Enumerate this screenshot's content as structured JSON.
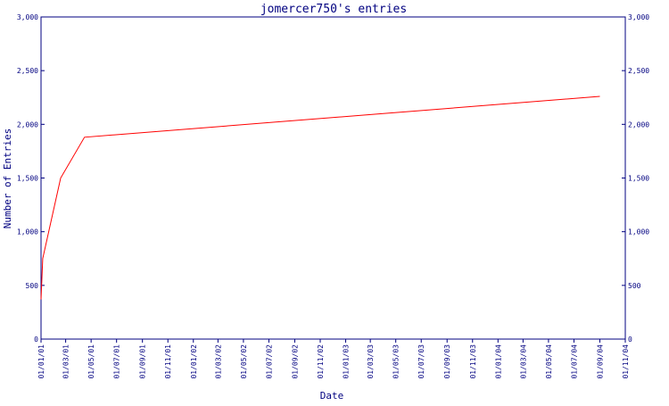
{
  "chart_data": {
    "type": "line",
    "title": "jomercer750's entries",
    "xlabel": "Date",
    "ylabel": "Number of Entries",
    "ylim": [
      0,
      3000
    ],
    "y_ticks": [
      {
        "value": 0,
        "label": "0"
      },
      {
        "value": 500,
        "label": "500"
      },
      {
        "value": 1000,
        "label": "1,000"
      },
      {
        "value": 1500,
        "label": "1,500"
      },
      {
        "value": 2000,
        "label": "2,000"
      },
      {
        "value": 2500,
        "label": "2,500"
      },
      {
        "value": 3000,
        "label": "3,000"
      }
    ],
    "x_ticks": [
      {
        "date": "2001-01-01",
        "label": "01/01/01"
      },
      {
        "date": "2001-03-01",
        "label": "01/03/01"
      },
      {
        "date": "2001-05-01",
        "label": "01/05/01"
      },
      {
        "date": "2001-07-01",
        "label": "01/07/01"
      },
      {
        "date": "2001-09-01",
        "label": "01/09/01"
      },
      {
        "date": "2001-11-01",
        "label": "01/11/01"
      },
      {
        "date": "2002-01-01",
        "label": "01/01/02"
      },
      {
        "date": "2002-03-01",
        "label": "01/03/02"
      },
      {
        "date": "2002-05-01",
        "label": "01/05/02"
      },
      {
        "date": "2002-07-01",
        "label": "01/07/02"
      },
      {
        "date": "2002-09-01",
        "label": "01/09/02"
      },
      {
        "date": "2002-11-01",
        "label": "01/11/02"
      },
      {
        "date": "2003-01-01",
        "label": "01/01/03"
      },
      {
        "date": "2003-03-01",
        "label": "01/03/03"
      },
      {
        "date": "2003-05-01",
        "label": "01/05/03"
      },
      {
        "date": "2003-07-01",
        "label": "01/07/03"
      },
      {
        "date": "2003-09-01",
        "label": "01/09/03"
      },
      {
        "date": "2003-11-01",
        "label": "01/11/03"
      },
      {
        "date": "2004-01-01",
        "label": "01/01/04"
      },
      {
        "date": "2004-03-01",
        "label": "01/03/04"
      },
      {
        "date": "2004-05-01",
        "label": "01/05/04"
      },
      {
        "date": "2004-07-01",
        "label": "01/07/04"
      },
      {
        "date": "2004-09-01",
        "label": "01/09/04"
      },
      {
        "date": "2004-11-01",
        "label": "01/11/04"
      }
    ],
    "xlim": [
      "2001-01-01",
      "2004-11-01"
    ],
    "series": [
      {
        "color": "#ff0000",
        "points": [
          {
            "x": "2001-01-01",
            "y": 370
          },
          {
            "x": "2001-01-05",
            "y": 750
          },
          {
            "x": "2001-02-17",
            "y": 1500
          },
          {
            "x": "2001-04-15",
            "y": 1880
          },
          {
            "x": "2004-09-01",
            "y": 2260
          }
        ]
      }
    ],
    "grid": false,
    "legend": "none",
    "colors": {
      "axis": "#000080",
      "line": "#ff0000",
      "background": "#ffffff"
    }
  }
}
